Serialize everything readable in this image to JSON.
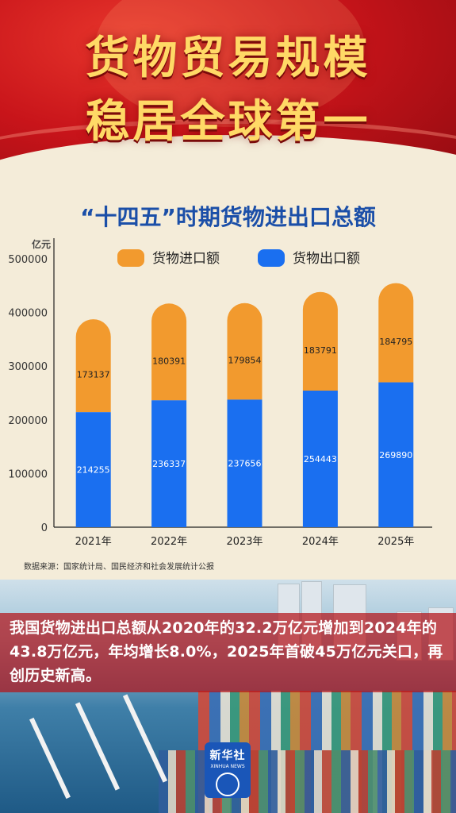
{
  "banner": {
    "title_line1": "货物贸易规模",
    "title_line2": "稳居全球第一"
  },
  "subtitle": "“十四五”时期货物进出口总额",
  "chart_data": {
    "type": "bar",
    "stacked": true,
    "unit_label": "亿元",
    "categories": [
      "2021年",
      "2022年",
      "2023年",
      "2024年",
      "2025年"
    ],
    "series": [
      {
        "name": "货物出口额",
        "color": "#1a6ff0",
        "values": [
          214255,
          236337,
          237656,
          254443,
          269890
        ]
      },
      {
        "name": "货物进口额",
        "color": "#f29a2e",
        "values": [
          173137,
          180391,
          179854,
          183791,
          184795
        ]
      }
    ],
    "ylim": [
      0,
      500000
    ],
    "yticks": [
      0,
      100000,
      200000,
      300000,
      400000,
      500000
    ],
    "legend_position": "top"
  },
  "source": "数据来源：国家统计局、国民经济和社会发展统计公报",
  "body_text": "我国货物进出口总额从2020年的32.2万亿元增加到2024年的43.8万亿元，年均增长8.0%，2025年首破45万亿元关口，再创历史新高。",
  "logo": {
    "cn": "新华社",
    "en": "XINHUA NEWS"
  }
}
